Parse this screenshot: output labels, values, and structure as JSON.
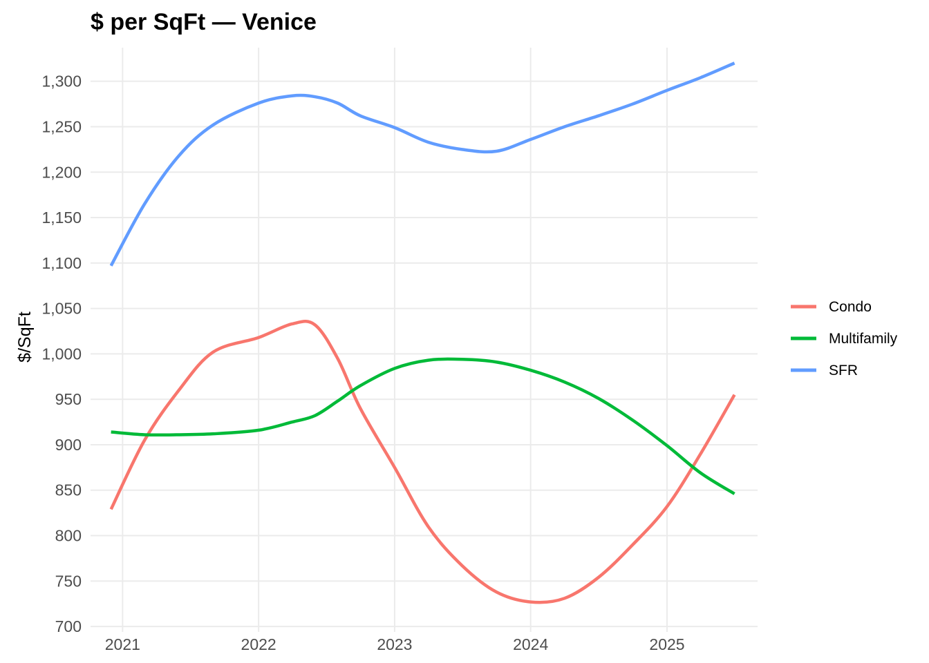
{
  "chart_data": {
    "type": "line",
    "title": "$ per SqFt — Venice",
    "xlabel": "",
    "ylabel": "$/SqFt",
    "x_ticks": [
      "2021",
      "2022",
      "2023",
      "2024",
      "2025"
    ],
    "y_ticks": [
      "700",
      "750",
      "800",
      "850",
      "900",
      "950",
      "1,000",
      "1,050",
      "1,100",
      "1,150",
      "1,200",
      "1,250",
      "1,300"
    ],
    "xlim": [
      "2020-10-07",
      "2025-09-01"
    ],
    "ylim": [
      694,
      1337
    ],
    "grid": true,
    "legend": "right",
    "x": [
      "2020-12-01",
      "2021-03-01",
      "2021-06-01",
      "2021-09-01",
      "2022-01-01",
      "2022-04-01",
      "2022-06-01",
      "2022-08-01",
      "2022-10-01",
      "2023-01-01",
      "2023-04-01",
      "2023-07-01",
      "2023-10-01",
      "2024-01-01",
      "2024-04-01",
      "2024-07-01",
      "2024-10-01",
      "2025-01-01",
      "2025-04-01",
      "2025-07-01"
    ],
    "series": [
      {
        "name": "Condo",
        "color": "#F8766D",
        "values": [
          829,
          905,
          960,
          1002,
          1018,
          1033,
          1032,
          995,
          940,
          875,
          810,
          767,
          738,
          727,
          731,
          754,
          790,
          832,
          890,
          955
        ]
      },
      {
        "name": "Multifamily",
        "color": "#00BA38",
        "values": [
          914,
          911,
          911,
          912,
          916,
          925,
          932,
          948,
          965,
          984,
          993,
          994,
          991,
          982,
          969,
          951,
          927,
          899,
          869,
          846
        ]
      },
      {
        "name": "SFR",
        "color": "#619CFF",
        "values": [
          1097,
          1165,
          1218,
          1252,
          1276,
          1284,
          1283,
          1276,
          1262,
          1249,
          1233,
          1225,
          1223,
          1236,
          1250,
          1262,
          1275,
          1290,
          1304,
          1320
        ]
      }
    ]
  }
}
